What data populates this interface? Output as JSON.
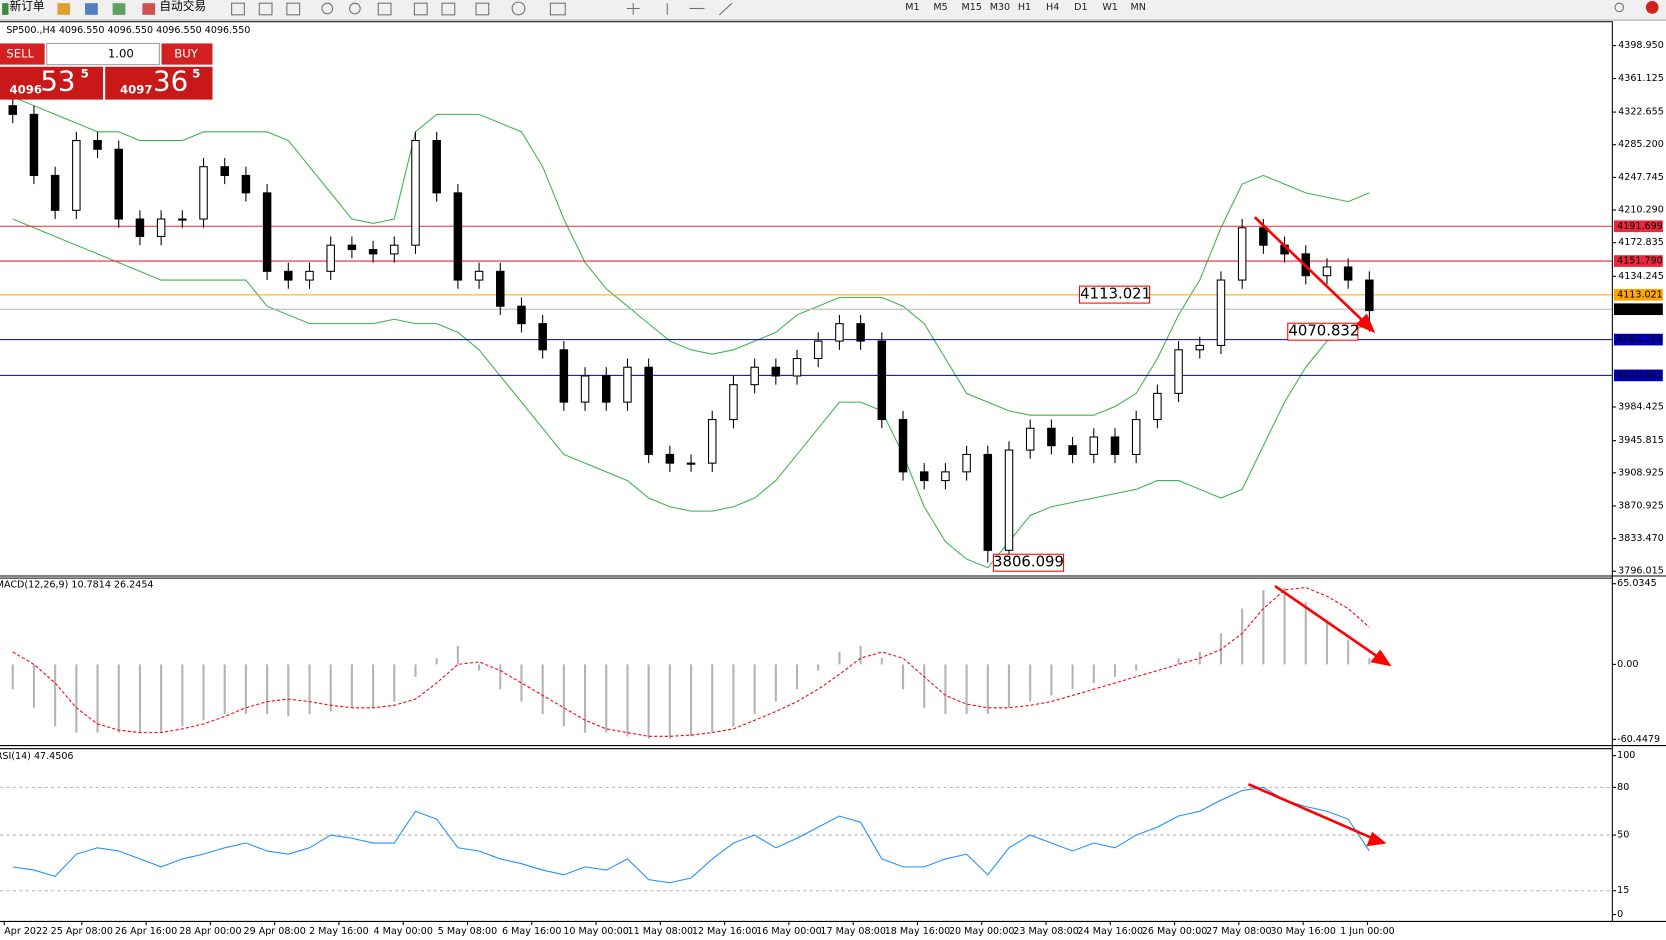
{
  "toolbar": {
    "new_order": "新订单",
    "auto_trading": "自动交易",
    "timeframes": [
      "M1",
      "M5",
      "M15",
      "M30",
      "H1",
      "H4",
      "D1",
      "W1",
      "MN"
    ]
  },
  "trade_panel": {
    "sell": "SELL",
    "lot": "1.00",
    "buy": "BUY",
    "bid": {
      "small": "4096",
      "big": "53",
      "sup": "5"
    },
    "ask": {
      "small": "4097",
      "big": "36",
      "sup": "5"
    }
  },
  "chart": {
    "header": "SP500.,H4  4096.550 4096.550 4096.550 4096.550",
    "ylim": [
      3791.2,
      4426.9
    ],
    "yticks": [
      {
        "value": 4398.95,
        "label": "4398.950"
      },
      {
        "value": 4361.125,
        "label": "4361.125"
      },
      {
        "value": 4322.655,
        "label": "4322.655"
      },
      {
        "value": 4285.2,
        "label": "4285.200"
      },
      {
        "value": 4247.745,
        "label": "4247.745"
      },
      {
        "value": 4210.29,
        "label": "4210.290"
      },
      {
        "value": 4172.835,
        "label": "4172.835"
      },
      {
        "value": 4134.245,
        "label": "4134.245"
      },
      {
        "value": 3984.425,
        "label": "3984.425"
      },
      {
        "value": 3945.815,
        "label": "3945.815"
      },
      {
        "value": 3908.925,
        "label": "3908.925"
      },
      {
        "value": 3870.925,
        "label": "3870.925"
      },
      {
        "value": 3833.47,
        "label": "3833.470"
      },
      {
        "value": 3796.015,
        "label": "3796.015"
      }
    ],
    "levels": [
      {
        "value": 4191.699,
        "color": "#e8283c"
      },
      {
        "value": 4151.79,
        "label": "4151.790",
        "color": "#e8283c"
      },
      {
        "value": 4113.021,
        "color": "#ffa500"
      },
      {
        "value": 4096.55,
        "label": "4096.550",
        "color": "#000000"
      },
      {
        "value": 4061.71,
        "label": "4061.710",
        "color": "#0000b4"
      },
      {
        "value": 4020.661,
        "color": "#0000b4"
      }
    ],
    "annotations": [
      {
        "value": 4113.021,
        "color": "#ff0000"
      },
      {
        "value": 4070.832,
        "color": "#ff0000"
      },
      {
        "value": 3806.099,
        "color": "#ff0000"
      }
    ],
    "candles": {
      "open": [
        4330,
        4320,
        4250,
        4210,
        4290,
        4280,
        4200,
        4180,
        4200,
        4200,
        4260,
        4250,
        4230,
        4140,
        4130,
        4140,
        4170,
        4165,
        4160,
        4170,
        4290,
        4230,
        4130,
        4140,
        4100,
        4080,
        4050,
        3990,
        4020,
        3990,
        4030,
        3930,
        3920,
        3920,
        3970,
        4010,
        4030,
        4020,
        4040,
        4060,
        4080,
        4060,
        3970,
        3910,
        3900,
        3910,
        3930,
        3820,
        3935,
        3960,
        3940,
        3930,
        3950,
        3930,
        3970,
        4000,
        4050,
        4055,
        4130,
        4190,
        4170,
        4160,
        4135,
        4145,
        4130
      ],
      "high": [
        4340,
        4330,
        4260,
        4300,
        4300,
        4290,
        4210,
        4210,
        4210,
        4270,
        4270,
        4260,
        4240,
        4150,
        4150,
        4180,
        4180,
        4175,
        4180,
        4300,
        4300,
        4240,
        4150,
        4150,
        4110,
        4090,
        4060,
        4030,
        4030,
        4040,
        4040,
        3940,
        3930,
        3980,
        4020,
        4040,
        4040,
        4050,
        4070,
        4090,
        4090,
        4070,
        3980,
        3920,
        3920,
        3940,
        3940,
        3945,
        3970,
        3970,
        3950,
        3960,
        3960,
        3980,
        4010,
        4060,
        4065,
        4140,
        4200,
        4200,
        4180,
        4170,
        4155,
        4155,
        4140
      ],
      "low": [
        4310,
        4240,
        4200,
        4200,
        4270,
        4190,
        4170,
        4170,
        4190,
        4190,
        4240,
        4220,
        4130,
        4120,
        4120,
        4130,
        4155,
        4150,
        4150,
        4160,
        4220,
        4120,
        4120,
        4090,
        4070,
        4040,
        3980,
        3980,
        3980,
        3980,
        3920,
        3910,
        3910,
        3910,
        3960,
        4000,
        4010,
        4010,
        4030,
        4050,
        4050,
        3960,
        3900,
        3890,
        3890,
        3900,
        3806.099,
        3810,
        3925,
        3930,
        3920,
        3920,
        3920,
        3920,
        3960,
        3990,
        4040,
        4045,
        4120,
        4160,
        4150,
        4125,
        4125,
        4120,
        4070.832
      ],
      "close": [
        4320,
        4250,
        4210,
        4290,
        4280,
        4200,
        4180,
        4200,
        4200,
        4260,
        4250,
        4230,
        4140,
        4130,
        4140,
        4170,
        4165,
        4160,
        4170,
        4290,
        4230,
        4130,
        4140,
        4100,
        4080,
        4050,
        3990,
        4020,
        3990,
        4030,
        3930,
        3920,
        3920,
        3970,
        4010,
        4030,
        4020,
        4040,
        4060,
        4080,
        4060,
        3970,
        3910,
        3900,
        3910,
        3930,
        3820,
        3935,
        3960,
        3940,
        3930,
        3950,
        3930,
        3970,
        4000,
        4050,
        4055,
        4130,
        4190,
        4170,
        4160,
        4135,
        4145,
        4130,
        4095
      ]
    },
    "bands": {
      "color": "#3cb44b",
      "upper": [
        4340,
        4330,
        4320,
        4310,
        4300,
        4300,
        4290,
        4290,
        4290,
        4300,
        4300,
        4300,
        4300,
        4290,
        4260,
        4230,
        4200,
        4195,
        4200,
        4300,
        4320,
        4320,
        4320,
        4310,
        4300,
        4260,
        4200,
        4150,
        4120,
        4100,
        4080,
        4060,
        4050,
        4045,
        4050,
        4060,
        4070,
        4090,
        4100,
        4110,
        4110,
        4110,
        4100,
        4080,
        4040,
        4000,
        3990,
        3980,
        3975,
        3975,
        3975,
        3975,
        3985,
        4000,
        4040,
        4090,
        4130,
        4190,
        4240,
        4250,
        4240,
        4230,
        4225,
        4220,
        4230
      ],
      "lower": [
        4200,
        4190,
        4180,
        4170,
        4160,
        4150,
        4140,
        4130,
        4130,
        4130,
        4130,
        4130,
        4100,
        4090,
        4080,
        4080,
        4080,
        4080,
        4085,
        4080,
        4080,
        4070,
        4050,
        4020,
        3990,
        3960,
        3930,
        3920,
        3910,
        3900,
        3880,
        3870,
        3865,
        3865,
        3870,
        3880,
        3900,
        3930,
        3960,
        3990,
        3990,
        3980,
        3930,
        3870,
        3830,
        3810,
        3800,
        3830,
        3860,
        3870,
        3875,
        3880,
        3885,
        3890,
        3900,
        3900,
        3890,
        3880,
        3890,
        3940,
        3990,
        4030,
        4060,
        4070,
        4080
      ]
    },
    "x_labels": [
      "Apr 2022",
      "25 Apr 08:00",
      "26 Apr 16:00",
      "28 Apr 00:00",
      "29 Apr 08:00",
      "2 May 16:00",
      "4 May 00:00",
      "5 May 08:00",
      "6 May 16:00",
      "10 May 00:00",
      "11 May 08:00",
      "12 May 16:00",
      "16 May 00:00",
      "17 May 08:00",
      "18 May 16:00",
      "20 May 00:00",
      "23 May 08:00",
      "24 May 16:00",
      "26 May 00:00",
      "27 May 08:00",
      "30 May 16:00",
      "1 Jun 00:00"
    ],
    "macd": {
      "label": "MACD(12,26,9) 10.7814 26.2454",
      "ylim": [
        -65,
        70
      ],
      "yticks": [
        65.0345,
        {
          "value": 0,
          "label": "0.00"
        },
        -60.4479
      ],
      "histogram_color": "#b4b4b4",
      "signal_color": "#ff0000",
      "histogram": [
        -20,
        -35,
        -50,
        -55,
        -55,
        -55,
        -55,
        -55,
        -50,
        -45,
        -40,
        -40,
        -40,
        -42,
        -40,
        -38,
        -35,
        -35,
        -30,
        -10,
        5,
        15,
        -5,
        -20,
        -30,
        -40,
        -50,
        -55,
        -55,
        -58,
        -60,
        -60,
        -58,
        -55,
        -50,
        -40,
        -30,
        -20,
        -5,
        10,
        15,
        5,
        -20,
        -35,
        -40,
        -40,
        -40,
        -35,
        -30,
        -25,
        -20,
        -15,
        -10,
        -5,
        0,
        5,
        10,
        25,
        45,
        60,
        62,
        50,
        35,
        20,
        5
      ],
      "signal": [
        10,
        0,
        -15,
        -35,
        -48,
        -53,
        -55,
        -55,
        -52,
        -48,
        -42,
        -35,
        -30,
        -28,
        -30,
        -33,
        -35,
        -35,
        -33,
        -28,
        -15,
        0,
        2,
        -5,
        -15,
        -25,
        -35,
        -45,
        -52,
        -55,
        -58,
        -58,
        -57,
        -55,
        -52,
        -45,
        -38,
        -30,
        -20,
        -8,
        5,
        10,
        5,
        -10,
        -25,
        -32,
        -35,
        -35,
        -33,
        -30,
        -25,
        -20,
        -15,
        -10,
        -5,
        0,
        5,
        12,
        25,
        45,
        60,
        62,
        55,
        45,
        30
      ]
    },
    "rsi": {
      "label": "RSI(14) 47.4506",
      "ylim": [
        0,
        100
      ],
      "yticks": [
        100,
        80,
        50,
        15,
        0
      ],
      "color": "#1e90ff",
      "values": [
        30,
        28,
        24,
        38,
        42,
        40,
        35,
        30,
        35,
        38,
        42,
        45,
        40,
        38,
        42,
        50,
        48,
        45,
        45,
        65,
        60,
        42,
        40,
        35,
        32,
        28,
        25,
        30,
        28,
        35,
        22,
        20,
        23,
        35,
        45,
        50,
        42,
        48,
        55,
        62,
        58,
        35,
        30,
        30,
        35,
        38,
        25,
        42,
        50,
        45,
        40,
        45,
        42,
        50,
        55,
        62,
        65,
        72,
        78,
        80,
        72,
        68,
        65,
        60,
        40
      ]
    }
  }
}
